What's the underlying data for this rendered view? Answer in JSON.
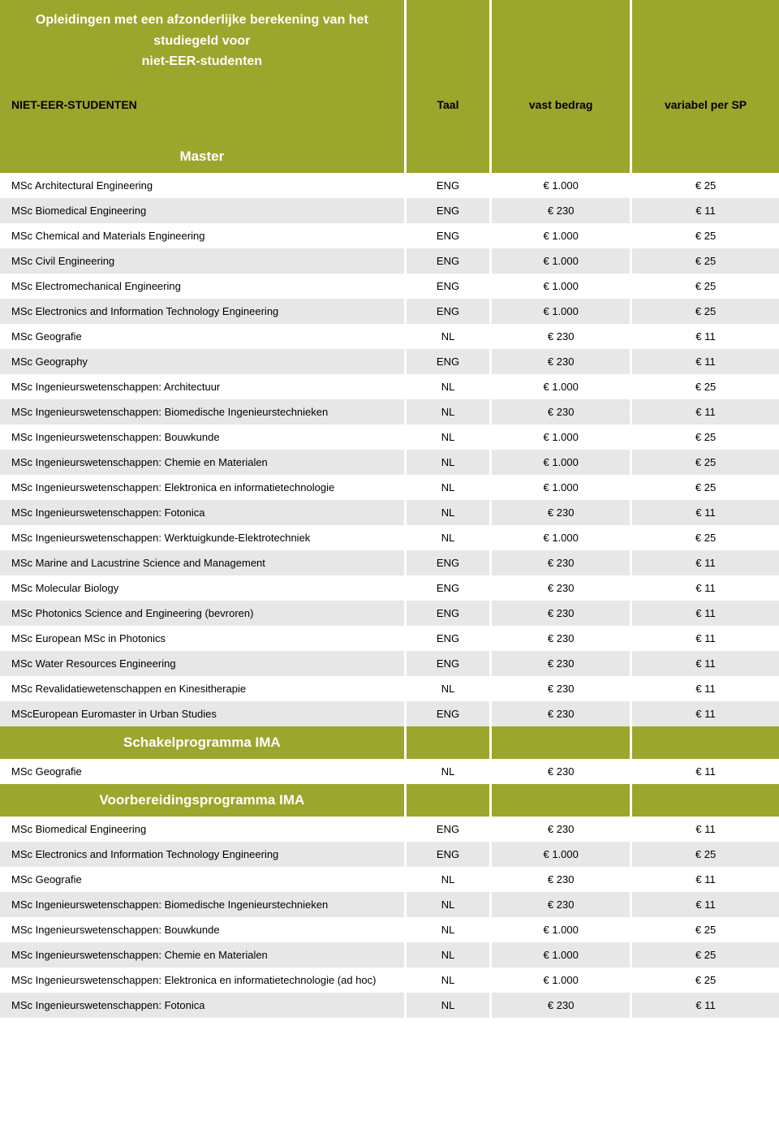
{
  "colors": {
    "olive": "#9ba62c",
    "alt_row": "#e7e7e7",
    "white_row": "#ffffff",
    "header_text": "#ffffff",
    "body_text": "#000000"
  },
  "header": {
    "title_line1": "Opleidingen met een afzonderlijke berekening van het studiegeld voor",
    "title_line2": "niet-EER-studenten",
    "col_name": "NIET-EER-STUDENTEN",
    "col_lang": "Taal",
    "col_fixed": "vast bedrag",
    "col_var": "variabel per SP"
  },
  "sections": [
    {
      "label": "Master",
      "rows": [
        {
          "name": "MSc Architectural Engineering",
          "lang": "ENG",
          "fixed": "€ 1.000",
          "var": "€ 25"
        },
        {
          "name": "MSc Biomedical Engineering",
          "lang": "ENG",
          "fixed": "€ 230",
          "var": "€ 11"
        },
        {
          "name": "MSc Chemical and  Materials Engineering",
          "lang": "ENG",
          "fixed": "€ 1.000",
          "var": "€ 25"
        },
        {
          "name": "MSc Civil Engineering",
          "lang": "ENG",
          "fixed": "€ 1.000",
          "var": "€ 25"
        },
        {
          "name": "MSc Electromechanical Engineering",
          "lang": "ENG",
          "fixed": "€ 1.000",
          "var": "€ 25"
        },
        {
          "name": "MSc Electronics and Information Technology Engineering",
          "lang": "ENG",
          "fixed": "€ 1.000",
          "var": "€ 25"
        },
        {
          "name": "MSc Geografie",
          "lang": "NL",
          "fixed": "€ 230",
          "var": "€ 11"
        },
        {
          "name": "MSc Geography",
          "lang": "ENG",
          "fixed": "€ 230",
          "var": "€ 11"
        },
        {
          "name": "MSc Ingenieurswetenschappen: Architectuur",
          "lang": "NL",
          "fixed": "€ 1.000",
          "var": "€ 25"
        },
        {
          "name": "MSc Ingenieurswetenschappen: Biomedische Ingenieurstechnieken",
          "lang": "NL",
          "fixed": "€ 230",
          "var": "€ 11"
        },
        {
          "name": "MSc Ingenieurswetenschappen: Bouwkunde",
          "lang": "NL",
          "fixed": "€ 1.000",
          "var": "€ 25"
        },
        {
          "name": "MSc Ingenieurswetenschappen: Chemie en Materialen",
          "lang": "NL",
          "fixed": "€ 1.000",
          "var": "€ 25"
        },
        {
          "name": "MSc Ingenieurswetenschappen: Elektronica en informatietechnologie",
          "lang": "NL",
          "fixed": "€ 1.000",
          "var": "€ 25"
        },
        {
          "name": "MSc Ingenieurswetenschappen: Fotonica",
          "lang": "NL",
          "fixed": "€ 230",
          "var": "€ 11"
        },
        {
          "name": "MSc Ingenieurswetenschappen: Werktuigkunde-Elektrotechniek",
          "lang": "NL",
          "fixed": "€ 1.000",
          "var": "€ 25"
        },
        {
          "name": "MSc Marine and Lacustrine Science and Management",
          "lang": "ENG",
          "fixed": "€ 230",
          "var": "€ 11"
        },
        {
          "name": "MSc Molecular Biology",
          "lang": "ENG",
          "fixed": "€ 230",
          "var": "€ 11"
        },
        {
          "name": "MSc Photonics Science and Engineering (bevroren)",
          "lang": "ENG",
          "fixed": "€ 230",
          "var": "€ 11"
        },
        {
          "name": "MSc European MSc in Photonics",
          "lang": "ENG",
          "fixed": "€ 230",
          "var": "€ 11"
        },
        {
          "name": "MSc Water Resources Engineering",
          "lang": "ENG",
          "fixed": "€ 230",
          "var": "€ 11"
        },
        {
          "name": "MSc Revalidatiewetenschappen en Kinesitherapie",
          "lang": "NL",
          "fixed": "€ 230",
          "var": "€ 11"
        },
        {
          "name": "MScEuropean Euromaster in Urban Studies",
          "lang": "ENG",
          "fixed": "€ 230",
          "var": "€ 11"
        }
      ]
    },
    {
      "label": "Schakelprogramma IMA",
      "rows": [
        {
          "name": "MSc Geografie",
          "lang": "NL",
          "fixed": "€ 230",
          "var": "€ 11"
        }
      ]
    },
    {
      "label": "Voorbereidingsprogramma IMA",
      "rows": [
        {
          "name": "MSc Biomedical Engineering",
          "lang": "ENG",
          "fixed": "€ 230",
          "var": "€ 11"
        },
        {
          "name": "MSc Electronics and Information Technology Engineering",
          "lang": "ENG",
          "fixed": "€ 1.000",
          "var": "€ 25"
        },
        {
          "name": "MSc Geografie",
          "lang": "NL",
          "fixed": "€ 230",
          "var": "€ 11"
        },
        {
          "name": "MSc Ingenieurswetenschappen: Biomedische Ingenieurstechnieken",
          "lang": "NL",
          "fixed": "€ 230",
          "var": "€ 11"
        },
        {
          "name": "MSc Ingenieurswetenschappen: Bouwkunde",
          "lang": "NL",
          "fixed": "€ 1.000",
          "var": "€ 25"
        },
        {
          "name": "MSc Ingenieurswetenschappen: Chemie en  Materialen",
          "lang": "NL",
          "fixed": "€ 1.000",
          "var": "€ 25"
        },
        {
          "name": "MSc Ingenieurswetenschappen: Elektronica en informatietechnologie (ad hoc)",
          "lang": "NL",
          "fixed": "€ 1.000",
          "var": "€ 25"
        },
        {
          "name": "MSc Ingenieurswetenschappen: Fotonica",
          "lang": "NL",
          "fixed": "€ 230",
          "var": "€ 11"
        }
      ]
    }
  ]
}
